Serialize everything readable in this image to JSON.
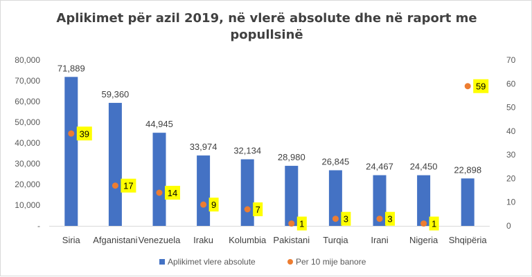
{
  "chart_data": {
    "type": "bar",
    "title_lines": [
      "Aplikimet për azil 2019, në vlerë absolute dhe në raport me",
      "popullsinë"
    ],
    "categories": [
      "Siria",
      "Afganistani",
      "Venezuela",
      "Iraku",
      "Kolumbia",
      "Pakistani",
      "Turqia",
      "Irani",
      "Nigeria",
      "Shqipëria"
    ],
    "series": [
      {
        "name": "Aplikimet vlere absolute",
        "type": "bar",
        "axis": "left",
        "color": "#4472C4",
        "values": [
          71889,
          59360,
          44945,
          33974,
          32134,
          28980,
          26845,
          24467,
          24450,
          22898
        ],
        "labels": [
          "71,889",
          "59,360",
          "44,945",
          "33,974",
          "32,134",
          "28,980",
          "26,845",
          "24,467",
          "24,450",
          "22,898"
        ]
      },
      {
        "name": "Per 10 mije banore",
        "type": "scatter",
        "axis": "right",
        "color": "#ED7D31",
        "label_bg": "#FFFF00",
        "values": [
          39,
          17,
          14,
          9,
          7,
          1,
          3,
          3,
          1,
          59
        ],
        "labels": [
          "39",
          "17",
          "14",
          "9",
          "7",
          "1",
          "3",
          "3",
          "1",
          "59"
        ]
      }
    ],
    "y_left": {
      "min": 0,
      "max": 80000,
      "ticks": [
        "-",
        "10,000",
        "20,000",
        "30,000",
        "40,000",
        "50,000",
        "60,000",
        "70,000",
        "80,000"
      ]
    },
    "y_right": {
      "min": 0,
      "max": 70,
      "ticks": [
        "0",
        "10",
        "20",
        "30",
        "40",
        "50",
        "60",
        "70"
      ]
    },
    "legend_position": "bottom",
    "grid": false
  }
}
